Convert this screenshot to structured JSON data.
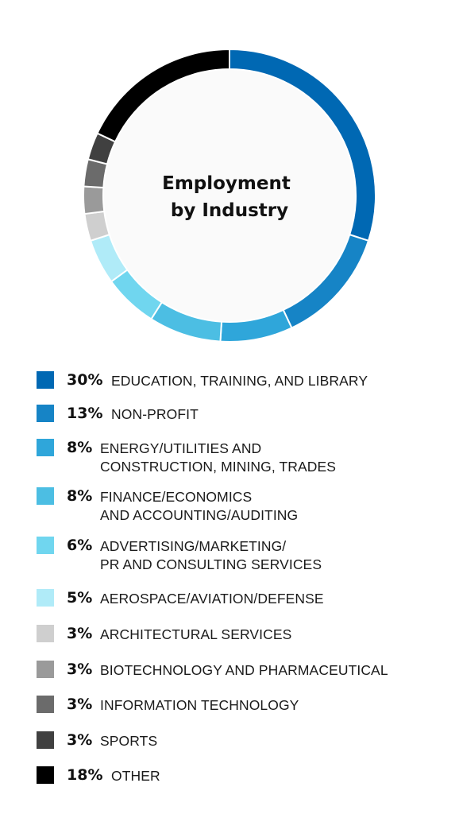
{
  "chart_data": {
    "type": "pie",
    "variant": "donut",
    "title": "Employment by Industry",
    "title_lines": [
      "Employment",
      "by Industry"
    ],
    "slices": [
      {
        "value": 30,
        "percent_label": "30%",
        "label_lines": [
          "EDUCATION, TRAINING, AND LIBRARY"
        ],
        "color": "#0068b3"
      },
      {
        "value": 13,
        "percent_label": "13%",
        "label_lines": [
          "NON-PROFIT"
        ],
        "color": "#1684c6"
      },
      {
        "value": 8,
        "percent_label": "8%",
        "label_lines": [
          "ENERGY/UTILITIES AND",
          "CONSTRUCTION, MINING, TRADES"
        ],
        "color": "#2fa6da"
      },
      {
        "value": 8,
        "percent_label": "8%",
        "label_lines": [
          "FINANCE/ECONOMICS",
          "AND ACCOUNTING/AUDITING"
        ],
        "color": "#4cbee3"
      },
      {
        "value": 6,
        "percent_label": "6%",
        "label_lines": [
          "ADVERTISING/MARKETING/",
          "PR AND CONSULTING SERVICES"
        ],
        "color": "#70d6ef"
      },
      {
        "value": 5,
        "percent_label": "5%",
        "label_lines": [
          "AEROSPACE/AVIATION/DEFENSE"
        ],
        "color": "#b0ebf8"
      },
      {
        "value": 3,
        "percent_label": "3%",
        "label_lines": [
          "ARCHITECTURAL SERVICES"
        ],
        "color": "#cfcfcf"
      },
      {
        "value": 3,
        "percent_label": "3%",
        "label_lines": [
          "BIOTECHNOLOGY AND PHARMACEUTICAL"
        ],
        "color": "#9a9a9a"
      },
      {
        "value": 3,
        "percent_label": "3%",
        "label_lines": [
          "INFORMATION TECHNOLOGY"
        ],
        "color": "#6b6b6b"
      },
      {
        "value": 3,
        "percent_label": "3%",
        "label_lines": [
          "SPORTS"
        ],
        "color": "#404040"
      },
      {
        "value": 18,
        "percent_label": "18%",
        "label_lines": [
          "OTHER"
        ],
        "color": "#000000"
      }
    ],
    "legend_placement": "bottom",
    "center_fill": "#fafafa"
  }
}
